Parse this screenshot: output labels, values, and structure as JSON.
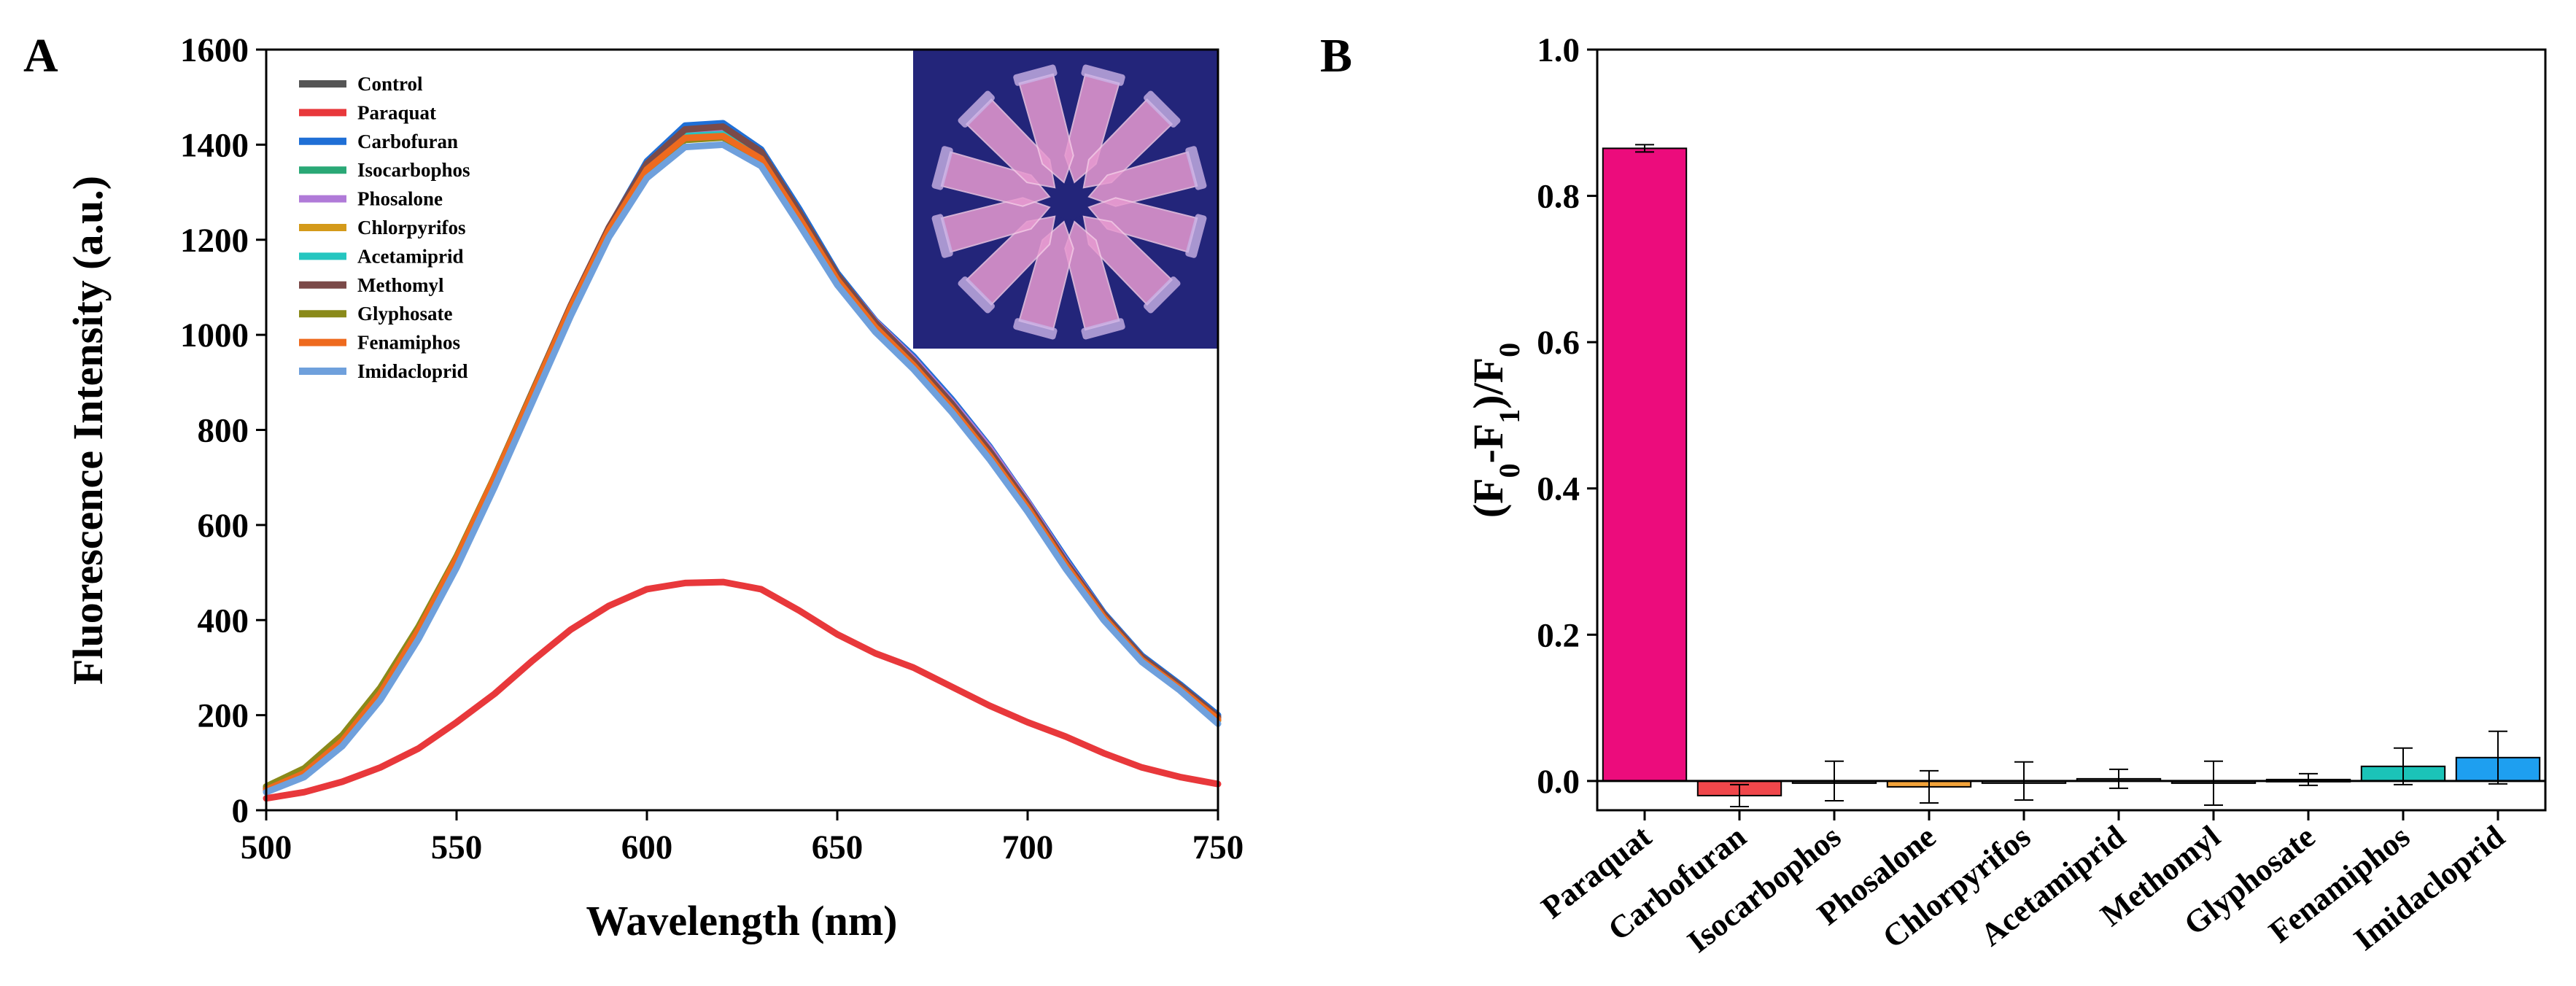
{
  "panels": {
    "a": "A",
    "b": "B"
  },
  "chart_data": [
    {
      "type": "line",
      "panel": "A",
      "xlabel": "Wavelength (nm)",
      "ylabel": "Fluorescence Intensity (a.u.)",
      "xlim": [
        500,
        750
      ],
      "ylim": [
        0,
        1600
      ],
      "xticks": [
        500,
        550,
        600,
        650,
        700,
        750
      ],
      "yticks": [
        0,
        200,
        400,
        600,
        800,
        1000,
        1200,
        1400,
        1600
      ],
      "x": [
        500,
        510,
        520,
        530,
        540,
        550,
        560,
        570,
        580,
        590,
        600,
        610,
        620,
        630,
        640,
        650,
        660,
        670,
        680,
        690,
        700,
        710,
        720,
        730,
        740,
        750
      ],
      "series": [
        {
          "name": "Control",
          "color": "#555555",
          "values": [
            45,
            80,
            150,
            250,
            380,
            530,
            700,
            880,
            1060,
            1220,
            1350,
            1425,
            1435,
            1380,
            1250,
            1120,
            1020,
            940,
            850,
            750,
            640,
            520,
            410,
            320,
            260,
            195
          ]
        },
        {
          "name": "Paraquat",
          "color": "#e8383b",
          "values": [
            25,
            38,
            60,
            90,
            130,
            185,
            245,
            315,
            380,
            430,
            465,
            478,
            480,
            465,
            420,
            370,
            330,
            300,
            260,
            220,
            185,
            155,
            120,
            90,
            70,
            55
          ]
        },
        {
          "name": "Carbofuran",
          "color": "#1f6fd6",
          "values": [
            40,
            75,
            140,
            240,
            370,
            520,
            690,
            870,
            1055,
            1225,
            1365,
            1440,
            1445,
            1390,
            1265,
            1130,
            1030,
            955,
            865,
            765,
            650,
            530,
            415,
            325,
            265,
            200
          ]
        },
        {
          "name": "Isocarbophos",
          "color": "#2aa876",
          "values": [
            42,
            77,
            145,
            245,
            375,
            525,
            695,
            875,
            1058,
            1222,
            1352,
            1420,
            1425,
            1375,
            1248,
            1118,
            1018,
            938,
            848,
            748,
            638,
            518,
            408,
            318,
            258,
            193
          ]
        },
        {
          "name": "Phosalone",
          "color": "#b07ad8",
          "values": [
            43,
            78,
            146,
            246,
            376,
            526,
            696,
            876,
            1058,
            1220,
            1350,
            1418,
            1428,
            1380,
            1255,
            1125,
            1028,
            950,
            860,
            762,
            648,
            525,
            412,
            322,
            260,
            195
          ]
        },
        {
          "name": "Chlorpyrifos",
          "color": "#d49a1a",
          "values": [
            44,
            79,
            147,
            247,
            377,
            527,
            697,
            877,
            1058,
            1218,
            1345,
            1412,
            1418,
            1370,
            1245,
            1115,
            1015,
            935,
            845,
            745,
            635,
            515,
            405,
            315,
            255,
            190
          ]
        },
        {
          "name": "Acetamiprid",
          "color": "#25c6c0",
          "values": [
            42,
            76,
            144,
            244,
            374,
            524,
            694,
            874,
            1056,
            1220,
            1350,
            1418,
            1422,
            1372,
            1246,
            1116,
            1016,
            936,
            846,
            746,
            636,
            516,
            406,
            316,
            256,
            191
          ]
        },
        {
          "name": "Methomyl",
          "color": "#7b4a48",
          "values": [
            46,
            82,
            152,
            252,
            382,
            532,
            702,
            882,
            1062,
            1226,
            1360,
            1432,
            1438,
            1385,
            1258,
            1126,
            1026,
            946,
            856,
            756,
            644,
            522,
            412,
            322,
            262,
            196
          ]
        },
        {
          "name": "Glyphosate",
          "color": "#8a8a1a",
          "values": [
            50,
            88,
            158,
            258,
            386,
            534,
            702,
            880,
            1058,
            1218,
            1346,
            1410,
            1415,
            1368,
            1244,
            1114,
            1014,
            934,
            844,
            744,
            634,
            514,
            404,
            314,
            254,
            189
          ]
        },
        {
          "name": "Fenamiphos",
          "color": "#ee6a1e",
          "values": [
            43,
            78,
            146,
            246,
            378,
            530,
            700,
            878,
            1058,
            1220,
            1348,
            1414,
            1418,
            1370,
            1246,
            1116,
            1016,
            936,
            846,
            746,
            636,
            516,
            406,
            316,
            256,
            191
          ]
        },
        {
          "name": "Imidacloprid",
          "color": "#6fa0dc",
          "values": [
            38,
            70,
            135,
            232,
            360,
            510,
            680,
            860,
            1040,
            1205,
            1330,
            1395,
            1400,
            1355,
            1232,
            1105,
            1006,
            928,
            838,
            738,
            628,
            508,
            400,
            312,
            252,
            182
          ]
        }
      ]
    },
    {
      "type": "bar",
      "panel": "B",
      "ylabel_parts": [
        "(F",
        "0",
        "-F",
        "1",
        ")/F",
        "0"
      ],
      "ylim": [
        -0.04,
        1.0
      ],
      "yticks": [
        "0.0",
        "0.2",
        "0.4",
        "0.6",
        "0.8",
        "1.0"
      ],
      "categories": [
        "Paraquat",
        "Carbofuran",
        "Isocarbophos",
        "Phosalone",
        "Chlorpyrifos",
        "Acetamiprid",
        "Methomyl",
        "Glyphosate",
        "Fenamiphos",
        "Imidacloprid"
      ],
      "values": [
        0.865,
        -0.02,
        0.0,
        -0.008,
        0.0,
        0.003,
        -0.003,
        0.002,
        0.02,
        0.032
      ],
      "errors": [
        0.005,
        0.015,
        0.027,
        0.022,
        0.026,
        0.013,
        0.03,
        0.008,
        0.025,
        0.036
      ],
      "colors": [
        "#ec0c7c",
        "#f0474b",
        "#5f5f5f",
        "#f2a33a",
        "#888888",
        "#777777",
        "#555555",
        "#999999",
        "#1bc3b8",
        "#1e9ff0"
      ]
    }
  ],
  "inset": {
    "tube_count": 12,
    "background": "#23257a",
    "tube_color": "#e79ad0"
  }
}
